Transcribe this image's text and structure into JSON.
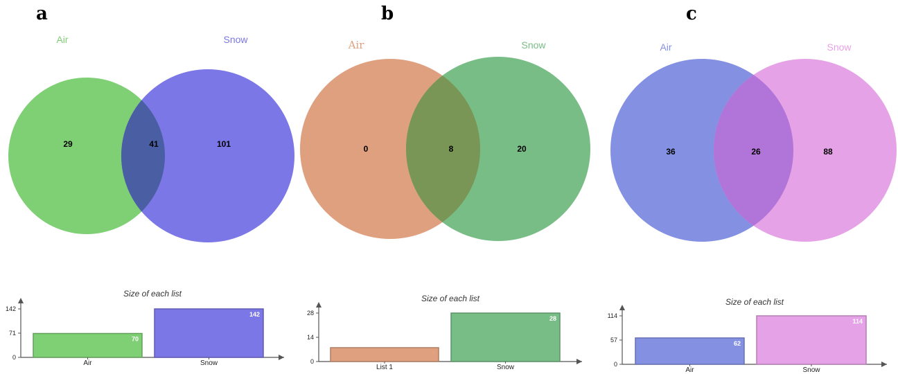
{
  "panels": [
    {
      "letter": "a",
      "sets": [
        {
          "label": "Air",
          "color": "#7fcf75"
        },
        {
          "label": "Snow",
          "color": "#7b77e6"
        }
      ],
      "overlap_color": "#4a5fa3",
      "counts": {
        "left_only": "29",
        "both": "41",
        "right_only": "101"
      },
      "bar_chart": {
        "title": "Size of each list",
        "categories": [
          "Air",
          "Snow"
        ],
        "values": [
          70,
          142
        ],
        "ticks": [
          0,
          71,
          142
        ],
        "value_label_colors": [
          "#ffffff",
          "#ffffff"
        ]
      }
    },
    {
      "letter": "b",
      "sets": [
        {
          "label": "Air",
          "color": "#dfa07f"
        },
        {
          "label": "Snow",
          "color": "#79bd86"
        }
      ],
      "overlap_color": "#799657",
      "counts": {
        "left_only": "0",
        "both": "8",
        "right_only": "20"
      },
      "bar_chart": {
        "title": "Size of each list",
        "categories": [
          "List 1",
          "Snow"
        ],
        "values": [
          8,
          28
        ],
        "ticks": [
          0,
          14,
          28
        ],
        "value_label_colors": [
          "#e8a27e",
          "#ffffff"
        ]
      }
    },
    {
      "letter": "c",
      "sets": [
        {
          "label": "Air",
          "color": "#8491e3"
        },
        {
          "label": "Snow",
          "color": "#e6a2e6"
        }
      ],
      "overlap_color": "#b174d8",
      "counts": {
        "left_only": "36",
        "both": "26",
        "right_only": "88"
      },
      "bar_chart": {
        "title": "Size of each list",
        "categories": [
          "Air",
          "Snow"
        ],
        "values": [
          62,
          114
        ],
        "ticks": [
          0,
          57,
          114
        ],
        "value_label_colors": [
          "#ffffff",
          "#ffffff"
        ]
      }
    }
  ]
}
